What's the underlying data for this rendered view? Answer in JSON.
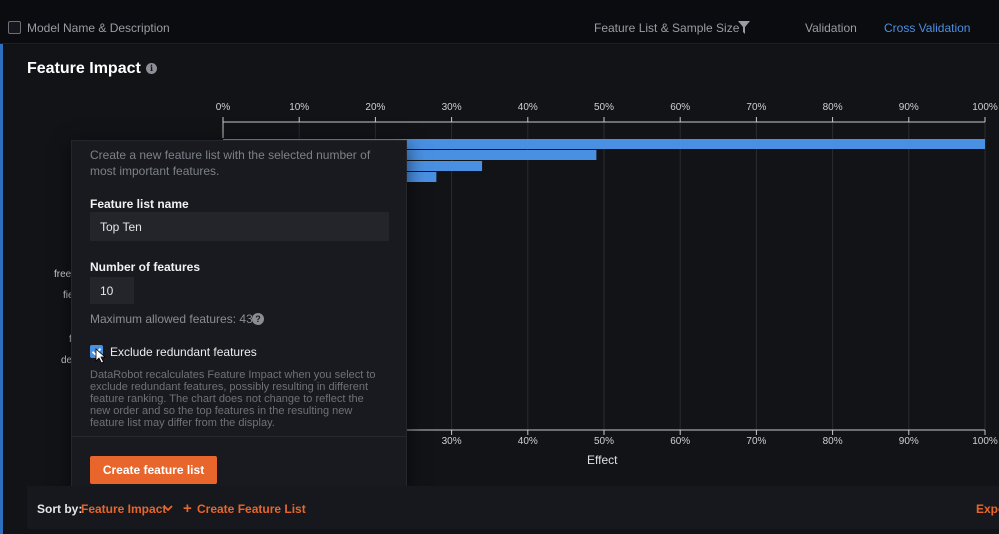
{
  "header": {
    "model_name_col": "Model Name & Description",
    "feature_list_col": "Feature List & Sample Size",
    "validation_col": "Validation",
    "cross_validation_col": "Cross Validation"
  },
  "page": {
    "title": "Feature Impact"
  },
  "chart_data": {
    "type": "bar",
    "orientation": "horizontal",
    "xlabel": "Effect",
    "x_ticks": [
      "0%",
      "10%",
      "20%",
      "30%",
      "40%",
      "50%",
      "60%",
      "70%",
      "80%",
      "90%",
      "100%"
    ],
    "bottom_x_ticks": [
      "30%",
      "40%",
      "50%",
      "60%",
      "70%",
      "80%",
      "90%",
      "100%"
    ],
    "xlim": [
      0,
      100
    ],
    "values": [
      100,
      49,
      34,
      28
    ],
    "partial_feature_labels": [
      "free",
      "fie",
      "f",
      "de"
    ],
    "bar_color": "#4a90e2",
    "grid": true
  },
  "popup": {
    "description": "Create a new feature list with the selected number of most important features.",
    "name_label": "Feature list name",
    "name_value": "Top Ten",
    "count_label": "Number of features",
    "count_value": "10",
    "max_text": "Maximum allowed features: 43",
    "exclude_label": "Exclude redundant features",
    "exclude_checked": true,
    "note": "DataRobot recalculates Feature Impact when you select to exclude redundant features, possibly resulting in different feature ranking. The chart does not change to reflect the new order and so the top features in the resulting new feature list may differ from the display.",
    "create_button": "Create feature list"
  },
  "footer": {
    "sort_by_label": "Sort by:",
    "sort_value": "Feature Impact",
    "create_link": "Create Feature List",
    "export_link": "Expo"
  },
  "colors": {
    "accent_orange": "#e8662c",
    "link_blue": "#4d8fe0"
  }
}
